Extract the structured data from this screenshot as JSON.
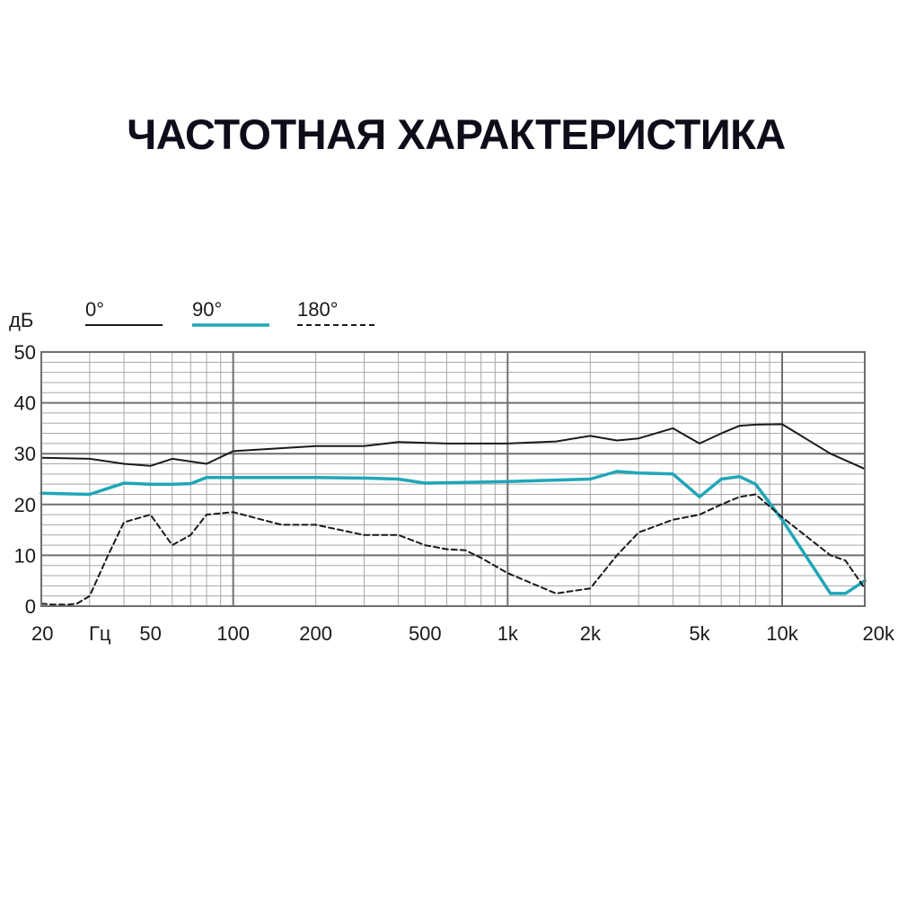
{
  "chart_data": {
    "type": "line",
    "title": "ЧАСТОТНАЯ ХАРАКТЕРИСТИКА",
    "ylabel": "дБ",
    "xlabel": "Гц",
    "x_scale": "log",
    "xlim": [
      20,
      20000
    ],
    "ylim": [
      0,
      50
    ],
    "grid": true,
    "legend_position": "top-left",
    "y_ticks": [
      0,
      10,
      20,
      30,
      40,
      50
    ],
    "y_tick_labels": [
      "0",
      "10",
      "20",
      "30",
      "40",
      "50"
    ],
    "x_ticks": [
      20,
      50,
      100,
      200,
      500,
      1000,
      2000,
      5000,
      10000,
      20000
    ],
    "x_tick_labels": [
      "20",
      "50",
      "100",
      "200",
      "500",
      "1k",
      "2k",
      "5k",
      "10k",
      "20k"
    ],
    "series": [
      {
        "name": "0°",
        "color": "#1a1a1a",
        "style": "solid",
        "x": [
          20,
          30,
          40,
          50,
          60,
          80,
          100,
          200,
          300,
          400,
          600,
          1000,
          1500,
          2000,
          2500,
          3000,
          4000,
          5000,
          6000,
          7000,
          8000,
          10000,
          15000,
          20000
        ],
        "y": [
          29.2,
          29.0,
          28.0,
          27.6,
          29.0,
          28.0,
          30.5,
          31.5,
          31.5,
          32.3,
          32.0,
          32.0,
          32.4,
          33.5,
          32.6,
          33.0,
          35.0,
          32.0,
          34.0,
          35.5,
          35.7,
          35.8,
          30.0,
          27.0
        ]
      },
      {
        "name": "90°",
        "color": "#1fa6b8",
        "style": "solid",
        "x": [
          20,
          30,
          40,
          50,
          60,
          70,
          80,
          100,
          200,
          300,
          400,
          500,
          1000,
          1500,
          2000,
          2500,
          3000,
          4000,
          5000,
          6000,
          7000,
          8000,
          10000,
          15000,
          17000,
          20000
        ],
        "y": [
          22.2,
          22.0,
          24.2,
          24.0,
          24.0,
          24.1,
          25.3,
          25.3,
          25.3,
          25.2,
          25.0,
          24.2,
          24.5,
          24.8,
          25.0,
          26.5,
          26.2,
          26.0,
          21.5,
          25.0,
          25.5,
          24.0,
          17.0,
          2.5,
          2.5,
          5.0
        ]
      },
      {
        "name": "180°",
        "color": "#1a1a1a",
        "style": "dashed",
        "x": [
          20,
          22,
          25,
          27,
          30,
          35,
          40,
          50,
          60,
          70,
          80,
          100,
          150,
          200,
          300,
          400,
          500,
          600,
          700,
          800,
          1000,
          1500,
          2000,
          2500,
          3000,
          4000,
          5000,
          6000,
          7000,
          8000,
          10000,
          15000,
          17000,
          20000
        ],
        "y": [
          0.5,
          0.3,
          0.3,
          0.5,
          2.0,
          10.0,
          16.5,
          18.0,
          12.0,
          14.0,
          18.0,
          18.5,
          16.0,
          16.0,
          14.0,
          14.0,
          12.0,
          11.2,
          11.0,
          9.5,
          6.5,
          2.5,
          3.5,
          10.0,
          14.5,
          17.0,
          18.0,
          20.0,
          21.5,
          22.0,
          17.5,
          10.0,
          9.0,
          3.5
        ]
      }
    ]
  }
}
